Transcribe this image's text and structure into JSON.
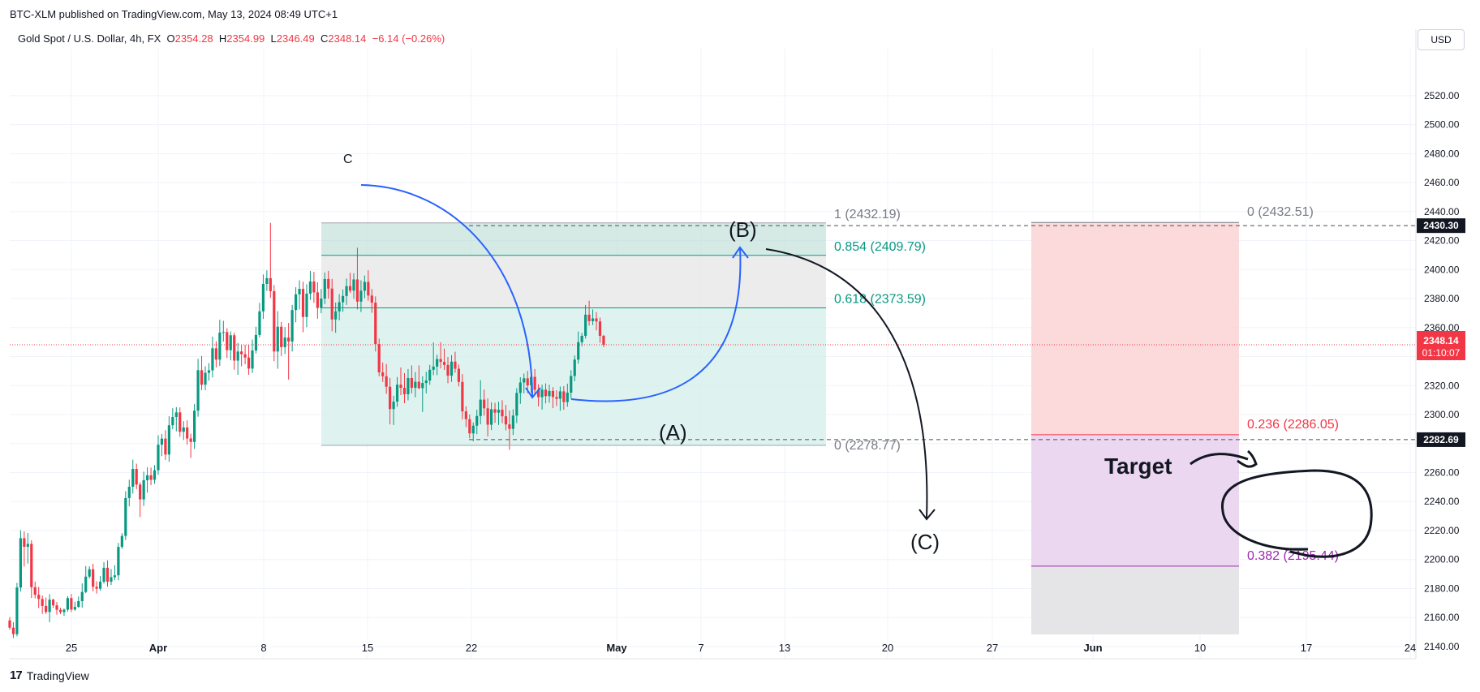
{
  "header": {
    "published": "BTC-XLM published on TradingView.com, May 13, 2024 08:49 UTC+1",
    "symbol": "Gold Spot / U.S. Dollar, 4h, FX",
    "ohlc": {
      "o_label": "O",
      "o": "2354.28",
      "h_label": "H",
      "h": "2354.99",
      "l_label": "L",
      "l": "2346.49",
      "c_label": "C",
      "c": "2348.14",
      "change": "−6.14 (−0.26%)"
    }
  },
  "currency": "USD",
  "footer": {
    "brand": "TradingView",
    "logo": "17"
  },
  "chart_data": {
    "type": "candlestick",
    "title": "Gold Spot / U.S. Dollar, 4h, FX",
    "ylim": [
      2130,
      2530
    ],
    "y_ticks": [
      "2520.00",
      "2500.00",
      "2480.00",
      "2460.00",
      "2440.00",
      "2420.00",
      "2400.00",
      "2380.00",
      "2360.00",
      "2340.00",
      "2320.00",
      "2300.00",
      "2280.00",
      "2260.00",
      "2240.00",
      "2220.00",
      "2200.00",
      "2180.00",
      "2160.00",
      "2140.00"
    ],
    "x_ticks": [
      "25",
      "Apr",
      "8",
      "15",
      "22",
      "May",
      "7",
      "13",
      "20",
      "27",
      "Jun",
      "10",
      "17",
      "24"
    ],
    "last_price": {
      "value": "2348.14",
      "countdown": "01:10:07"
    },
    "price_markers": [
      {
        "label": "2430.30",
        "value": 2430.3
      },
      {
        "label": "2282.69",
        "value": 2282.69
      }
    ],
    "fib_retracement": {
      "levels": [
        {
          "label": "1 (2432.19)",
          "value": 2432.19,
          "color": "#787b86"
        },
        {
          "label": "0.854 (2409.79)",
          "value": 2409.79,
          "color": "#089981"
        },
        {
          "label": "0.618 (2373.59)",
          "value": 2373.59,
          "color": "#089981"
        },
        {
          "label": "0 (2278.77)",
          "value": 2278.77,
          "color": "#787b86"
        }
      ]
    },
    "fib_extension": {
      "levels": [
        {
          "label": "0 (2432.51)",
          "value": 2432.51,
          "color": "#787b86"
        },
        {
          "label": "0.236 (2286.05)",
          "value": 2286.05,
          "color": "#f23645"
        },
        {
          "label": "0.382 (2195.44)",
          "value": 2195.44,
          "color": "#9c27b0"
        }
      ]
    },
    "annotations": [
      "C",
      "(B)",
      "(A)",
      "(C)",
      "Target"
    ],
    "colors": {
      "up": "#089981",
      "down": "#f23645",
      "arrow_blue": "#2962ff"
    },
    "candles": [
      [
        2158.0,
        2160.3,
        2151.6,
        2153.0
      ],
      [
        2153.0,
        2156.8,
        2145.8,
        2148.5
      ],
      [
        2148.5,
        2183.9,
        2147.0,
        2180.7
      ],
      [
        2180.7,
        2220.2,
        2177.9,
        2214.7
      ],
      [
        2214.7,
        2219.4,
        2195.2,
        2208.8
      ],
      [
        2208.8,
        2218.3,
        2197.2,
        2210.8
      ],
      [
        2210.8,
        2213.3,
        2173.5,
        2180.9
      ],
      [
        2180.9,
        2184.8,
        2173.2,
        2175.7
      ],
      [
        2175.7,
        2181.1,
        2166.5,
        2172.8
      ],
      [
        2172.8,
        2175.2,
        2162.5,
        2168.0
      ],
      [
        2168.0,
        2173.8,
        2162.5,
        2163.8
      ],
      [
        2163.8,
        2176.1,
        2156.8,
        2172.3
      ],
      [
        2172.3,
        2173.0,
        2166.6,
        2168.4
      ],
      [
        2168.4,
        2170.7,
        2162.0,
        2165.3
      ],
      [
        2165.3,
        2166.7,
        2162.4,
        2163.7
      ],
      [
        2163.7,
        2166.2,
        2161.1,
        2165.4
      ],
      [
        2165.4,
        2174.7,
        2164.0,
        2173.4
      ],
      [
        2173.4,
        2176.2,
        2163.8,
        2165.5
      ],
      [
        2165.5,
        2170.9,
        2164.7,
        2167.3
      ],
      [
        2167.3,
        2174.5,
        2166.7,
        2171.3
      ],
      [
        2171.3,
        2183.5,
        2166.8,
        2177.6
      ],
      [
        2177.6,
        2195.5,
        2176.8,
        2188.2
      ],
      [
        2188.2,
        2195.3,
        2186.9,
        2193.3
      ],
      [
        2193.3,
        2197.1,
        2178.0,
        2181.2
      ],
      [
        2181.2,
        2185.0,
        2176.5,
        2179.9
      ],
      [
        2179.9,
        2188.6,
        2178.5,
        2184.7
      ],
      [
        2184.7,
        2198.2,
        2183.4,
        2194.3
      ],
      [
        2194.3,
        2199.4,
        2181.2,
        2184.7
      ],
      [
        2184.7,
        2193.4,
        2182.5,
        2187.8
      ],
      [
        2187.8,
        2196.1,
        2185.7,
        2189.1
      ],
      [
        2189.1,
        2211.4,
        2185.7,
        2208.7
      ],
      [
        2208.7,
        2218.2,
        2207.5,
        2216.3
      ],
      [
        2216.3,
        2247.1,
        2213.5,
        2242.4
      ],
      [
        2242.4,
        2255.1,
        2236.7,
        2250.2
      ],
      [
        2250.2,
        2268.9,
        2245.5,
        2262.5
      ],
      [
        2262.5,
        2266.1,
        2248.6,
        2251.7
      ],
      [
        2251.7,
        2253.3,
        2229.3,
        2241.5
      ],
      [
        2241.5,
        2260.6,
        2236.9,
        2254.7
      ],
      [
        2254.7,
        2263.6,
        2246.1,
        2258.1
      ],
      [
        2258.1,
        2263.4,
        2251.3,
        2255.0
      ],
      [
        2255.0,
        2265.1,
        2252.3,
        2261.6
      ],
      [
        2261.6,
        2285.8,
        2258.5,
        2279.2
      ],
      [
        2279.2,
        2286.6,
        2271.3,
        2283.4
      ],
      [
        2283.4,
        2289.2,
        2268.7,
        2272.4
      ],
      [
        2272.4,
        2298.8,
        2267.4,
        2292.6
      ],
      [
        2292.6,
        2304.4,
        2289.9,
        2298.3
      ],
      [
        2298.3,
        2305.1,
        2288.4,
        2301.5
      ],
      [
        2301.5,
        2304.9,
        2284.7,
        2288.1
      ],
      [
        2288.1,
        2295.4,
        2282.4,
        2291.1
      ],
      [
        2291.1,
        2296.0,
        2279.2,
        2283.5
      ],
      [
        2283.5,
        2286.8,
        2270.1,
        2281.1
      ],
      [
        2281.1,
        2307.3,
        2276.3,
        2302.7
      ],
      [
        2302.7,
        2338.4,
        2298.5,
        2330.6
      ],
      [
        2330.6,
        2340.4,
        2316.9,
        2320.6
      ],
      [
        2320.6,
        2333.3,
        2316.8,
        2328.8
      ],
      [
        2328.8,
        2335.5,
        2323.4,
        2330.5
      ],
      [
        2330.5,
        2353.7,
        2325.6,
        2345.7
      ],
      [
        2345.7,
        2350.6,
        2332.6,
        2337.9
      ],
      [
        2337.9,
        2365.4,
        2333.5,
        2356.5
      ],
      [
        2356.5,
        2364.7,
        2350.3,
        2356.9
      ],
      [
        2356.9,
        2359.5,
        2338.9,
        2344.4
      ],
      [
        2344.4,
        2357.3,
        2337.4,
        2354.7
      ],
      [
        2354.7,
        2356.4,
        2330.9,
        2337.2
      ],
      [
        2337.2,
        2349.4,
        2327.4,
        2343.5
      ],
      [
        2343.5,
        2347.9,
        2333.2,
        2341.6
      ],
      [
        2341.6,
        2348.1,
        2334.7,
        2339.3
      ],
      [
        2339.3,
        2348.0,
        2327.4,
        2331.7
      ],
      [
        2331.7,
        2351.7,
        2328.7,
        2344.2
      ],
      [
        2344.2,
        2360.6,
        2342.2,
        2354.9
      ],
      [
        2354.9,
        2377.0,
        2353.2,
        2371.2
      ],
      [
        2371.2,
        2396.6,
        2366.0,
        2390.1
      ],
      [
        2390.1,
        2399.5,
        2385.4,
        2394.1
      ],
      [
        2394.1,
        2432.2,
        2380.5,
        2385.1
      ],
      [
        2385.1,
        2389.3,
        2336.8,
        2343.5
      ],
      [
        2343.5,
        2371.3,
        2331.6,
        2360.6
      ],
      [
        2360.6,
        2363.8,
        2340.4,
        2346.5
      ],
      [
        2346.5,
        2360.3,
        2341.7,
        2353.1
      ],
      [
        2353.1,
        2363.2,
        2324.1,
        2350.4
      ],
      [
        2350.4,
        2375.6,
        2343.5,
        2372.1
      ],
      [
        2372.1,
        2387.8,
        2363.6,
        2382.9
      ],
      [
        2382.9,
        2392.6,
        2372.5,
        2386.7
      ],
      [
        2386.7,
        2391.6,
        2356.8,
        2367.3
      ],
      [
        2367.3,
        2389.9,
        2360.3,
        2383.4
      ],
      [
        2383.4,
        2399.1,
        2379.1,
        2391.8
      ],
      [
        2391.8,
        2398.4,
        2377.1,
        2384.3
      ],
      [
        2384.3,
        2391.2,
        2366.1,
        2373.5
      ],
      [
        2373.5,
        2386.6,
        2369.9,
        2380.0
      ],
      [
        2380.0,
        2398.0,
        2376.2,
        2393.5
      ],
      [
        2393.5,
        2399.1,
        2379.9,
        2386.9
      ],
      [
        2386.9,
        2393.6,
        2357.4,
        2365.6
      ],
      [
        2365.6,
        2377.2,
        2356.4,
        2371.2
      ],
      [
        2371.2,
        2383.1,
        2365.0,
        2377.5
      ],
      [
        2377.5,
        2386.3,
        2370.9,
        2381.8
      ],
      [
        2381.8,
        2393.8,
        2375.6,
        2388.6
      ],
      [
        2388.6,
        2397.7,
        2383.9,
        2385.5
      ],
      [
        2385.5,
        2397.5,
        2379.9,
        2393.2
      ],
      [
        2393.2,
        2415.1,
        2372.5,
        2377.9
      ],
      [
        2377.9,
        2392.6,
        2370.7,
        2385.4
      ],
      [
        2385.4,
        2395.9,
        2380.2,
        2391.5
      ],
      [
        2391.5,
        2399.5,
        2378.6,
        2382.1
      ],
      [
        2382.1,
        2386.6,
        2370.2,
        2377.2
      ],
      [
        2377.2,
        2381.5,
        2343.5,
        2348.6
      ],
      [
        2348.6,
        2352.4,
        2326.4,
        2329.1
      ],
      [
        2329.1,
        2335.9,
        2322.5,
        2326.4
      ],
      [
        2326.4,
        2334.9,
        2314.3,
        2319.2
      ],
      [
        2319.2,
        2325.3,
        2293.2,
        2303.8
      ],
      [
        2303.8,
        2313.0,
        2292.8,
        2308.9
      ],
      [
        2308.9,
        2325.9,
        2305.4,
        2320.6
      ],
      [
        2320.6,
        2332.5,
        2313.4,
        2318.4
      ],
      [
        2318.4,
        2328.6,
        2307.8,
        2314.0
      ],
      [
        2314.0,
        2331.4,
        2309.8,
        2325.2
      ],
      [
        2325.2,
        2333.9,
        2314.6,
        2318.4
      ],
      [
        2318.4,
        2329.3,
        2311.9,
        2322.6
      ],
      [
        2322.6,
        2333.9,
        2317.5,
        2318.2
      ],
      [
        2318.2,
        2326.4,
        2301.8,
        2321.8
      ],
      [
        2321.8,
        2329.5,
        2314.6,
        2323.5
      ],
      [
        2323.5,
        2334.3,
        2320.5,
        2330.9
      ],
      [
        2330.9,
        2349.8,
        2327.2,
        2333.1
      ],
      [
        2333.1,
        2341.3,
        2327.2,
        2338.3
      ],
      [
        2338.3,
        2349.9,
        2331.8,
        2336.3
      ],
      [
        2336.3,
        2345.5,
        2330.8,
        2334.2
      ],
      [
        2334.2,
        2339.7,
        2321.6,
        2326.8
      ],
      [
        2326.8,
        2341.0,
        2322.6,
        2336.5
      ],
      [
        2336.5,
        2343.3,
        2328.9,
        2331.6
      ],
      [
        2331.6,
        2334.5,
        2319.4,
        2322.5
      ],
      [
        2322.5,
        2327.9,
        2296.6,
        2302.2
      ],
      [
        2302.2,
        2305.7,
        2291.4,
        2296.8
      ],
      [
        2296.8,
        2300.0,
        2283.7,
        2287.0
      ],
      [
        2287.0,
        2294.6,
        2281.5,
        2292.3
      ],
      [
        2292.3,
        2303.3,
        2286.4,
        2299.0
      ],
      [
        2299.0,
        2323.7,
        2293.3,
        2310.3
      ],
      [
        2310.3,
        2317.2,
        2299.2,
        2304.3
      ],
      [
        2304.3,
        2311.1,
        2284.9,
        2293.0
      ],
      [
        2293.0,
        2308.5,
        2289.3,
        2303.7
      ],
      [
        2303.7,
        2308.1,
        2294.3,
        2301.3
      ],
      [
        2301.3,
        2308.9,
        2292.8,
        2303.3
      ],
      [
        2303.3,
        2309.9,
        2294.0,
        2298.8
      ],
      [
        2298.8,
        2306.7,
        2289.1,
        2293.2
      ],
      [
        2293.2,
        2302.8,
        2275.7,
        2290.1
      ],
      [
        2290.1,
        2303.6,
        2285.9,
        2299.3
      ],
      [
        2299.3,
        2318.2,
        2294.1,
        2314.9
      ],
      [
        2314.9,
        2325.8,
        2307.4,
        2322.1
      ],
      [
        2322.1,
        2328.3,
        2314.6,
        2325.0
      ],
      [
        2325.0,
        2330.1,
        2314.7,
        2320.1
      ],
      [
        2320.1,
        2330.8,
        2315.2,
        2326.0
      ],
      [
        2326.0,
        2331.4,
        2314.5,
        2317.1
      ],
      [
        2317.1,
        2320.9,
        2305.6,
        2312.0
      ],
      [
        2312.0,
        2320.6,
        2303.4,
        2317.2
      ],
      [
        2317.2,
        2321.5,
        2307.7,
        2312.7
      ],
      [
        2312.7,
        2320.6,
        2308.2,
        2316.3
      ],
      [
        2316.3,
        2318.9,
        2304.4,
        2312.1
      ],
      [
        2312.1,
        2316.7,
        2305.9,
        2310.9
      ],
      [
        2310.9,
        2319.3,
        2302.6,
        2316.0
      ],
      [
        2316.0,
        2319.6,
        2303.3,
        2308.6
      ],
      [
        2308.6,
        2321.3,
        2305.4,
        2315.1
      ],
      [
        2315.1,
        2330.6,
        2310.9,
        2326.6
      ],
      [
        2326.6,
        2340.8,
        2323.0,
        2337.9
      ],
      [
        2337.9,
        2357.3,
        2335.1,
        2349.9
      ],
      [
        2349.9,
        2356.4,
        2347.2,
        2354.3
      ],
      [
        2354.3,
        2375.6,
        2352.4,
        2368.9
      ],
      [
        2368.9,
        2378.6,
        2361.3,
        2364.4
      ],
      [
        2364.4,
        2372.5,
        2361.7,
        2366.3
      ],
      [
        2366.3,
        2370.7,
        2358.1,
        2364.2
      ],
      [
        2364.2,
        2366.9,
        2349.5,
        2354.3
      ],
      [
        2354.3,
        2354.99,
        2346.49,
        2348.14
      ]
    ]
  }
}
